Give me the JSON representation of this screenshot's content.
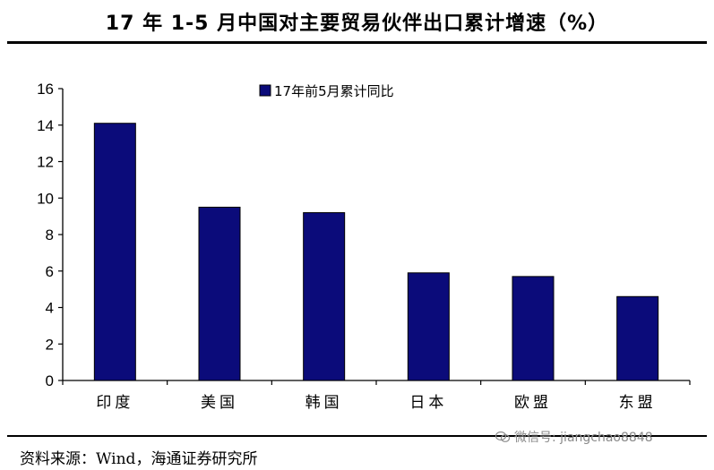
{
  "title": "17 年 1-5 月中国对主要贸易伙伴出口累计增速（%）",
  "source": "资料来源：Wind，海通证券研究所",
  "watermark": "微信号: jiangchao8848",
  "colors": {
    "bar": "#0b0b7a",
    "axis": "#000000",
    "text": "#000000"
  },
  "chart_data": {
    "type": "bar",
    "title": "17 年 1-5 月中国对主要贸易伙伴出口累计增速（%）",
    "categories": [
      "印度",
      "美国",
      "韩国",
      "日本",
      "欧盟",
      "东盟"
    ],
    "series": [
      {
        "name": "17年前5月累计同比",
        "values": [
          14.1,
          9.5,
          9.2,
          5.9,
          5.7,
          4.6
        ]
      }
    ],
    "yticks": [
      "0",
      "2",
      "4",
      "6",
      "8",
      "10",
      "12",
      "14",
      "16"
    ],
    "ylim": [
      0,
      16
    ],
    "xlabel": "",
    "ylabel": "",
    "grid": false,
    "legend": "top-center"
  }
}
